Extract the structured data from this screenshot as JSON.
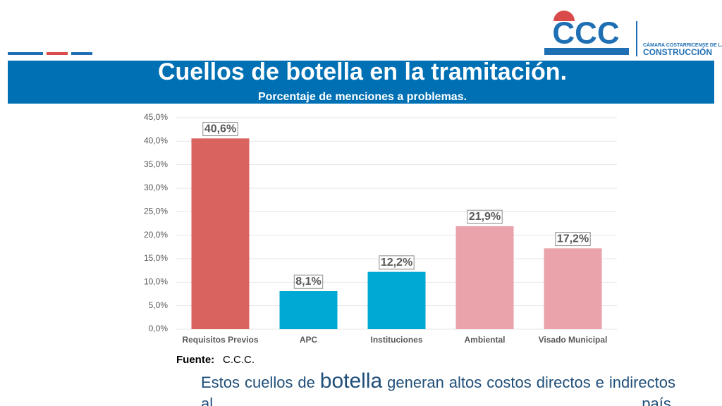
{
  "logo": {
    "mark": "CCC",
    "line1": "CÁMARA COSTARRICENSE DE LA",
    "line2": "CONSTRUCCIÓN"
  },
  "chart_data": {
    "type": "bar",
    "title": "Cuellos de botella en la tramitación.",
    "subtitle": "Porcentaje de menciones a problemas.",
    "categories": [
      "Requisitos Previos",
      "APC",
      "Instituciones",
      "Ambiental",
      "Visado Municipal"
    ],
    "values": [
      40.6,
      8.1,
      12.2,
      21.9,
      17.2
    ],
    "value_labels": [
      "40,6%",
      "8,1%",
      "12,2%",
      "21,9%",
      "17,2%"
    ],
    "colors": [
      "#d9645f",
      "#00a8d4",
      "#00a8d4",
      "#eaa3ab",
      "#eaa3ab"
    ],
    "ylim": [
      0,
      45
    ],
    "yticks": [
      {
        "value": 0,
        "label": "0,0%"
      },
      {
        "value": 5,
        "label": "5,0%"
      },
      {
        "value": 10,
        "label": "10,0%"
      },
      {
        "value": 15,
        "label": "15,0%"
      },
      {
        "value": 20,
        "label": "20,0%"
      },
      {
        "value": 25,
        "label": "25,0%"
      },
      {
        "value": 30,
        "label": "30,0%"
      },
      {
        "value": 35,
        "label": "35,0%"
      },
      {
        "value": 40,
        "label": "40,0%"
      },
      {
        "value": 45,
        "label": "45,0%"
      }
    ],
    "grid": true
  },
  "source": {
    "label": "Fuente:",
    "text": "C.C.C."
  },
  "body": {
    "parts": [
      "Estos cuellos de ",
      "botella",
      " generan altos costos directos e indirectos al país."
    ]
  }
}
